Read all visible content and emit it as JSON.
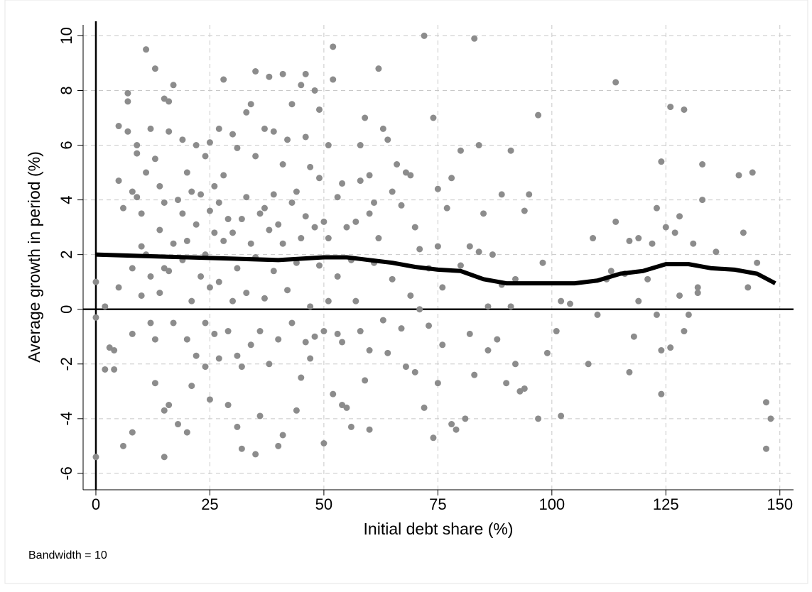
{
  "chart_data": {
    "type": "scatter",
    "x_label": "Initial debt share (%)",
    "y_label": "Average growth in period (%)",
    "note": "Bandwidth = 10",
    "color": "#8c8c8c",
    "x": [
      0,
      0,
      0,
      2,
      2,
      3,
      4,
      4,
      5,
      5,
      5,
      6,
      6,
      7,
      7,
      7,
      8,
      8,
      8,
      8,
      9,
      9,
      9,
      10,
      10,
      10,
      11,
      11,
      11,
      12,
      12,
      12,
      13,
      13,
      13,
      13,
      14,
      14,
      14,
      15,
      15,
      15,
      15,
      15,
      16,
      16,
      16,
      16,
      17,
      17,
      17,
      18,
      18,
      19,
      19,
      19,
      20,
      20,
      20,
      20,
      21,
      21,
      21,
      22,
      22,
      22,
      23,
      23,
      24,
      24,
      24,
      24,
      25,
      25,
      25,
      25,
      26,
      26,
      26,
      27,
      27,
      27,
      27,
      28,
      28,
      28,
      29,
      29,
      29,
      30,
      30,
      30,
      31,
      31,
      31,
      31,
      32,
      32,
      32,
      33,
      33,
      33,
      34,
      34,
      34,
      35,
      35,
      35,
      35,
      36,
      36,
      36,
      37,
      37,
      37,
      38,
      38,
      38,
      39,
      39,
      39,
      40,
      40,
      40,
      41,
      41,
      41,
      41,
      42,
      42,
      43,
      43,
      43,
      44,
      44,
      44,
      45,
      45,
      45,
      46,
      46,
      46,
      46,
      47,
      47,
      47,
      48,
      48,
      48,
      49,
      49,
      49,
      50,
      50,
      50,
      51,
      51,
      51,
      52,
      52,
      52,
      53,
      53,
      53,
      54,
      54,
      54,
      55,
      55,
      56,
      56,
      57,
      57,
      58,
      58,
      58,
      59,
      59,
      60,
      60,
      60,
      60,
      61,
      61,
      62,
      62,
      63,
      63,
      64,
      64,
      65,
      65,
      66,
      67,
      67,
      68,
      68,
      69,
      69,
      70,
      70,
      71,
      71,
      72,
      72,
      73,
      73,
      74,
      74,
      75,
      75,
      75,
      76,
      76,
      77,
      78,
      78,
      79,
      80,
      80,
      81,
      82,
      82,
      83,
      83,
      84,
      84,
      85,
      86,
      86,
      87,
      88,
      89,
      89,
      90,
      91,
      91,
      92,
      92,
      93,
      94,
      94,
      95,
      97,
      97,
      98,
      99,
      101,
      102,
      102,
      104,
      108,
      109,
      110,
      112,
      113,
      114,
      114,
      116,
      117,
      117,
      118,
      119,
      119,
      121,
      122,
      123,
      123,
      124,
      124,
      124,
      125,
      126,
      126,
      127,
      128,
      128,
      129,
      129,
      130,
      131,
      132,
      132,
      133,
      133,
      136,
      141,
      142,
      143,
      144,
      145,
      147,
      147,
      148
    ],
    "values": [
      1.0,
      -0.3,
      -5.4,
      0.1,
      -2.2,
      -1.4,
      -2.2,
      -1.5,
      6.7,
      4.7,
      0.8,
      -5.0,
      3.7,
      7.6,
      7.9,
      6.5,
      4.3,
      1.5,
      -0.9,
      -4.5,
      6.0,
      5.7,
      4.1,
      3.5,
      2.3,
      0.5,
      9.5,
      5.0,
      2.0,
      6.6,
      1.2,
      -0.5,
      8.8,
      5.5,
      -1.1,
      -2.7,
      4.5,
      2.9,
      0.6,
      7.7,
      3.9,
      1.5,
      -3.7,
      -5.4,
      7.6,
      6.5,
      1.4,
      -3.5,
      8.2,
      2.4,
      -0.5,
      4.0,
      -4.2,
      6.2,
      3.5,
      1.8,
      5.0,
      2.5,
      -1.1,
      -4.5,
      4.3,
      0.3,
      -2.8,
      6.0,
      3.1,
      -1.7,
      4.2,
      1.2,
      5.6,
      2.0,
      -0.5,
      -2.1,
      6.1,
      3.6,
      0.8,
      -3.3,
      4.5,
      2.8,
      -0.9,
      6.6,
      3.9,
      1.0,
      -1.8,
      8.4,
      4.9,
      2.5,
      3.3,
      -0.8,
      -3.5,
      6.4,
      2.8,
      0.3,
      5.9,
      1.5,
      -1.7,
      -4.3,
      3.3,
      -2.1,
      -5.1,
      7.2,
      4.1,
      0.6,
      7.5,
      2.4,
      -1.3,
      8.7,
      5.6,
      1.9,
      -5.3,
      3.5,
      -0.8,
      -3.9,
      6.6,
      3.7,
      0.4,
      8.5,
      2.9,
      -2.0,
      6.5,
      4.2,
      1.4,
      3.1,
      -1.1,
      -5.0,
      8.6,
      5.3,
      2.4,
      -4.6,
      6.2,
      0.7,
      7.5,
      3.9,
      -0.5,
      4.3,
      1.7,
      -3.7,
      8.2,
      2.6,
      -2.5,
      8.6,
      6.3,
      3.4,
      -1.2,
      5.2,
      0.1,
      -1.8,
      8.0,
      3.0,
      -1.0,
      7.3,
      4.8,
      1.6,
      3.2,
      -0.8,
      -4.9,
      6.0,
      2.6,
      0.3,
      9.6,
      8.4,
      -3.1,
      4.1,
      1.2,
      -0.9,
      4.6,
      -1.2,
      -3.5,
      3.0,
      -3.6,
      1.8,
      -4.3,
      3.2,
      0.3,
      6.0,
      4.7,
      -0.8,
      7.0,
      -2.6,
      4.9,
      3.5,
      -1.5,
      -4.4,
      3.9,
      1.7,
      8.8,
      2.6,
      6.6,
      -0.4,
      6.2,
      -1.6,
      4.3,
      1.1,
      5.3,
      3.8,
      -0.7,
      5.0,
      -2.1,
      4.9,
      0.5,
      3.0,
      -2.3,
      2.2,
      0.0,
      10.0,
      -3.6,
      1.5,
      -0.6,
      7.0,
      -4.7,
      4.4,
      2.3,
      -2.7,
      0.8,
      -1.3,
      3.7,
      -4.2,
      4.8,
      -4.4,
      5.8,
      1.6,
      -4.0,
      2.3,
      -0.9,
      9.9,
      -2.4,
      6.0,
      2.1,
      3.5,
      -1.5,
      0.1,
      2.0,
      -1.1,
      4.2,
      0.9,
      -2.7,
      5.8,
      0.1,
      -2.0,
      1.1,
      -3.0,
      3.6,
      -2.9,
      4.2,
      7.1,
      -4.0,
      1.7,
      -1.6,
      -0.8,
      0.3,
      -3.9,
      0.2,
      -2.0,
      2.6,
      -0.2,
      1.1,
      1.4,
      8.3,
      3.2,
      1.3,
      2.5,
      -2.3,
      -1.0,
      2.6,
      0.3,
      1.1,
      2.4,
      3.7,
      -0.2,
      5.4,
      -1.5,
      -3.1,
      3.0,
      7.4,
      -1.4,
      2.8,
      3.4,
      0.5,
      7.3,
      -0.8,
      -0.2,
      2.4,
      0.8,
      0.6,
      5.3,
      4.0,
      2.1,
      4.9,
      2.8,
      0.8,
      5.0,
      1.7,
      -5.1,
      -3.4,
      -4.0
    ],
    "fit": {
      "color": "#000000",
      "x": [
        0,
        10,
        20,
        30,
        40,
        50,
        55,
        60,
        65,
        70,
        75,
        80,
        85,
        90,
        95,
        100,
        105,
        110,
        115,
        120,
        125,
        130,
        135,
        140,
        145,
        149
      ],
      "values": [
        2.0,
        1.95,
        1.9,
        1.85,
        1.8,
        1.9,
        1.9,
        1.8,
        1.7,
        1.55,
        1.45,
        1.4,
        1.1,
        0.95,
        0.95,
        0.95,
        0.95,
        1.05,
        1.3,
        1.4,
        1.65,
        1.65,
        1.5,
        1.45,
        1.3,
        0.95
      ]
    },
    "xlim": [
      -2.8,
      153
    ],
    "ylim": [
      -6.6,
      10.4
    ],
    "xticks": [
      0,
      25,
      50,
      75,
      100,
      125,
      150
    ],
    "yticks": [
      -6,
      -4,
      -2,
      0,
      2,
      4,
      6,
      8,
      10
    ],
    "grid": true,
    "zero_lines": true
  }
}
